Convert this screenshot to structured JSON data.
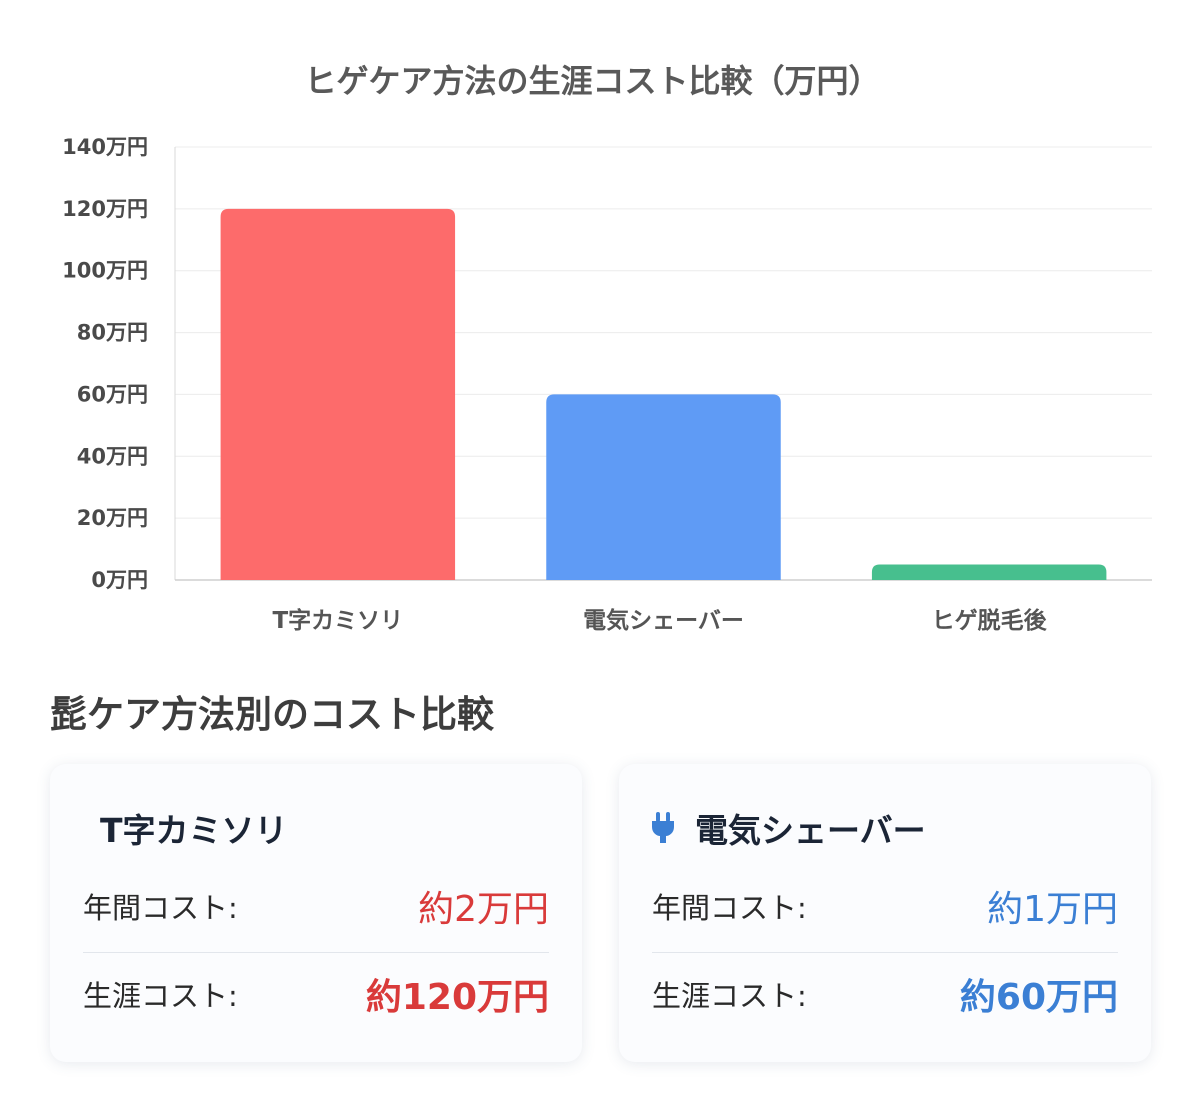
{
  "chart_data": {
    "type": "bar",
    "title": "ヒゲケア方法の生涯コスト比較（万円）",
    "categories": [
      "T字カミソリ",
      "電気シェーバー",
      "ヒゲ脱毛後"
    ],
    "values": [
      120,
      60,
      5
    ],
    "bar_colors": [
      "#fd6b6b",
      "#5f9bf5",
      "#47bf8e"
    ],
    "yticks": [
      "0万円",
      "20万円",
      "40万円",
      "60万円",
      "80万円",
      "100万円",
      "120万円",
      "140万円"
    ],
    "ylim": [
      0,
      140
    ],
    "grid": true,
    "legend": "none"
  },
  "section": {
    "heading": "髭ケア方法別のコスト比較"
  },
  "cards": [
    {
      "title": "T字カミソリ",
      "annual_label": "年間コスト:",
      "annual_value": "約2万円",
      "lifetime_label": "生涯コスト:",
      "lifetime_value": "約120万円",
      "accent": "#d93a3a"
    },
    {
      "icon": "plug-icon",
      "title": "電気シェーバー",
      "annual_label": "年間コスト:",
      "annual_value": "約1万円",
      "lifetime_label": "生涯コスト:",
      "lifetime_value": "約60万円",
      "accent": "#3b7fd4"
    }
  ]
}
